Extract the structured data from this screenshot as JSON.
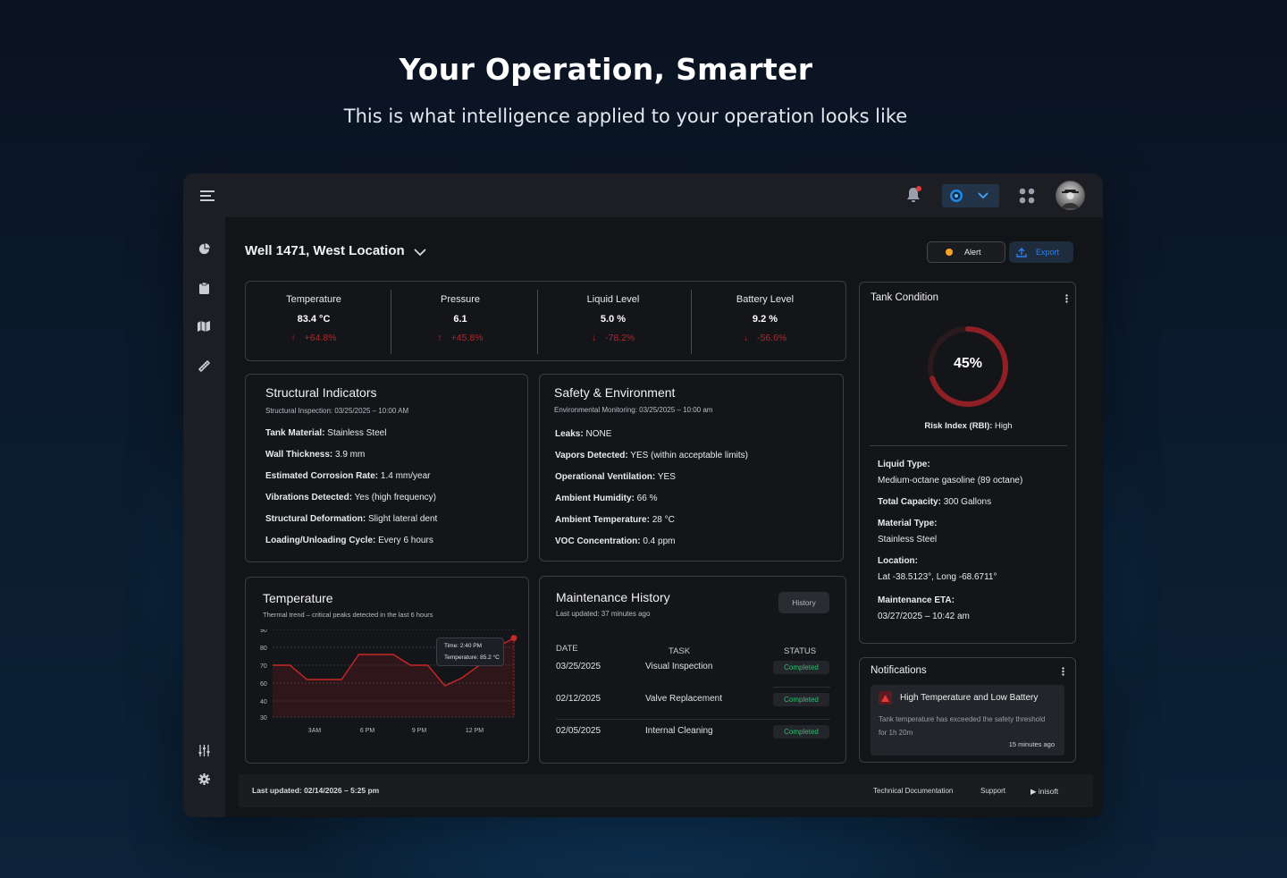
{
  "hero": {
    "title": "Your Operation, Smarter",
    "subtitle": "This is what intelligence applied to your operation looks like"
  },
  "topbar": {
    "menu_icon": "hamburger-icon",
    "notification_icon": "bell-icon",
    "notification_dot_color": "#e53935",
    "globe_icon": "globe-icon",
    "apps_icon": "grid-icon",
    "avatar": "user-avatar"
  },
  "sidebar": {
    "items": [
      {
        "icon": "pie-chart-icon"
      },
      {
        "icon": "clipboard-icon"
      },
      {
        "icon": "map-icon"
      },
      {
        "icon": "ruler-icon"
      }
    ],
    "bottom": [
      {
        "icon": "sliders-icon"
      },
      {
        "icon": "gear-icon"
      }
    ]
  },
  "header": {
    "location": "Well 1471, West Location",
    "alert_label": "Alert",
    "alert_color": "#f5a623",
    "export_label": "Export"
  },
  "metrics": [
    {
      "label": "Temperature",
      "value": "83.4 °C",
      "change": "+64.8%",
      "direction": "up"
    },
    {
      "label": "Pressure",
      "value": "6.1",
      "change": "+45.8%",
      "direction": "up"
    },
    {
      "label": "Liquid Level",
      "value": "5.0 %",
      "change": "-78.2%",
      "direction": "down"
    },
    {
      "label": "Battery Level",
      "value": "9.2 %",
      "change": "-56.6%",
      "direction": "down"
    }
  ],
  "structural": {
    "title": "Structural Indicators",
    "subtitle": "Structural Inspection: 03/25/2025 – 10:00 AM",
    "rows": [
      {
        "key": "Tank Material:",
        "value": " Stainless Steel"
      },
      {
        "key": "Wall Thickness:",
        "value": " 3.9 mm"
      },
      {
        "key": "Estimated Corrosion Rate:",
        "value": " 1.4 mm/year"
      },
      {
        "key": "Vibrations Detected:",
        "value": " Yes (high frequency)"
      },
      {
        "key": "Structural Deformation:",
        "value": " Slight lateral dent"
      },
      {
        "key": "Loading/Unloading Cycle:",
        "value": " Every 6 hours"
      }
    ]
  },
  "safety": {
    "title": "Safety & Environment",
    "subtitle": "Environmental Monitoring: 03/25/2025 – 10:00 am",
    "rows": [
      {
        "key": "Leaks:",
        "value": " NONE"
      },
      {
        "key": "Vapors Detected:",
        "value": " YES (within acceptable limits)"
      },
      {
        "key": "Operational Ventilation:",
        "value": " YES"
      },
      {
        "key": "Ambient Humidity:",
        "value": " 66 %"
      },
      {
        "key": "Ambient Temperature:",
        "value": " 28 °C"
      },
      {
        "key": "VOC Concentration:",
        "value": " 0.4 ppm"
      }
    ]
  },
  "tank": {
    "title": "Tank Condition",
    "percent_label": "45%",
    "percent_value": 0.45,
    "risk_key": "Risk Index (RBI):",
    "risk_value": " High",
    "liquid_type_key": "Liquid Type:",
    "liquid_type_value": "Medium-octane gasoline (89 octane)",
    "capacity_key": "Total Capacity:",
    "capacity_value": " 300 Gallons",
    "material_key": "Material Type:",
    "material_value": "Stainless Steel",
    "location_key": "Location:",
    "location_value": "Lat -38.5123°, Long -68.6711°",
    "eta_key": "Maintenance ETA:",
    "eta_value": "03/27/2025 – 10:42 am"
  },
  "temperature_chart": {
    "title": "Temperature",
    "subtitle": "Thermal trend – critical peaks detected in the last 6 hours",
    "tooltip_time": "Time: 2:40 PM",
    "tooltip_temp": "Temperature: 85.2 °C"
  },
  "chart_data": {
    "type": "area",
    "yticks": [
      "90",
      "80",
      "70",
      "60",
      "40",
      "30"
    ],
    "xticks": [
      "3AM",
      "6 PM",
      "9 PM",
      "12 PM"
    ],
    "ylim": [
      30,
      90
    ],
    "values": [
      70,
      70,
      62,
      62,
      62,
      76,
      76,
      76,
      70,
      70,
      57,
      63,
      70,
      80,
      85.2
    ],
    "color": "#c62828"
  },
  "maintenance": {
    "title": "Maintenance History",
    "subtitle": "Last updated: 37 minutes ago",
    "history_button": "History",
    "columns": [
      "DATE",
      "TASK",
      "STATUS"
    ],
    "rows": [
      {
        "date": "03/25/2025",
        "task": "Visual Inspection",
        "status": "Completed"
      },
      {
        "date": "02/12/2025",
        "task": "Valve Replacement",
        "status": "Completed"
      },
      {
        "date": "02/05/2025",
        "task": "Internal Cleaning",
        "status": "Completed"
      }
    ]
  },
  "notifications": {
    "title": "Notifications",
    "item_title": "High Temperature and Low Battery",
    "item_body": "Tank temperature has exceeded the safety threshold for 1h 20m",
    "item_time": "15 minutes ago"
  },
  "footer": {
    "last_updated": "Last updated: 02/14/2026 – 5:25 pm",
    "docs_link": "Technical Documentation",
    "support_link": "Support",
    "brand": "▶ inisoft"
  }
}
